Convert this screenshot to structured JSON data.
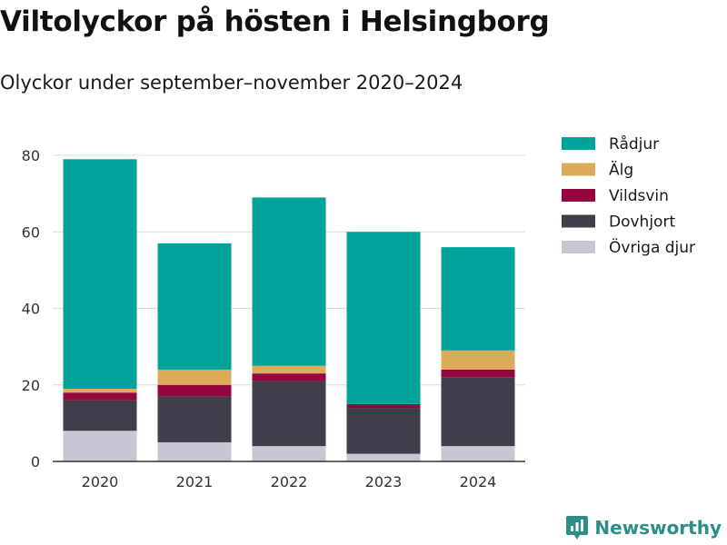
{
  "title": "Viltolyckor på hösten i Helsingborg",
  "subtitle": "Olyckor under september–november 2020–2024",
  "brand": "Newsworthy",
  "chart_data": {
    "type": "bar",
    "stacked": true,
    "categories": [
      "2020",
      "2021",
      "2022",
      "2023",
      "2024"
    ],
    "ylim": [
      0,
      85
    ],
    "yticks": [
      0,
      20,
      40,
      60,
      80
    ],
    "grid": true,
    "legend_position": "right",
    "series": [
      {
        "name": "Övriga djur",
        "color": "#c8c6d3",
        "values": [
          8,
          5,
          4,
          2,
          4
        ]
      },
      {
        "name": "Dovhjort",
        "color": "#3f3f4c",
        "values": [
          8,
          12,
          17,
          12,
          18
        ]
      },
      {
        "name": "Vildsvin",
        "color": "#93073e",
        "values": [
          2,
          3,
          2,
          1,
          2
        ]
      },
      {
        "name": "Älg",
        "color": "#dbab5a",
        "values": [
          1,
          4,
          2,
          0,
          5
        ]
      },
      {
        "name": "Rådjur",
        "color": "#00a39a",
        "values": [
          60,
          33,
          44,
          45,
          27
        ]
      }
    ],
    "legend_order": [
      "Rådjur",
      "Älg",
      "Vildsvin",
      "Dovhjort",
      "Övriga djur"
    ]
  }
}
